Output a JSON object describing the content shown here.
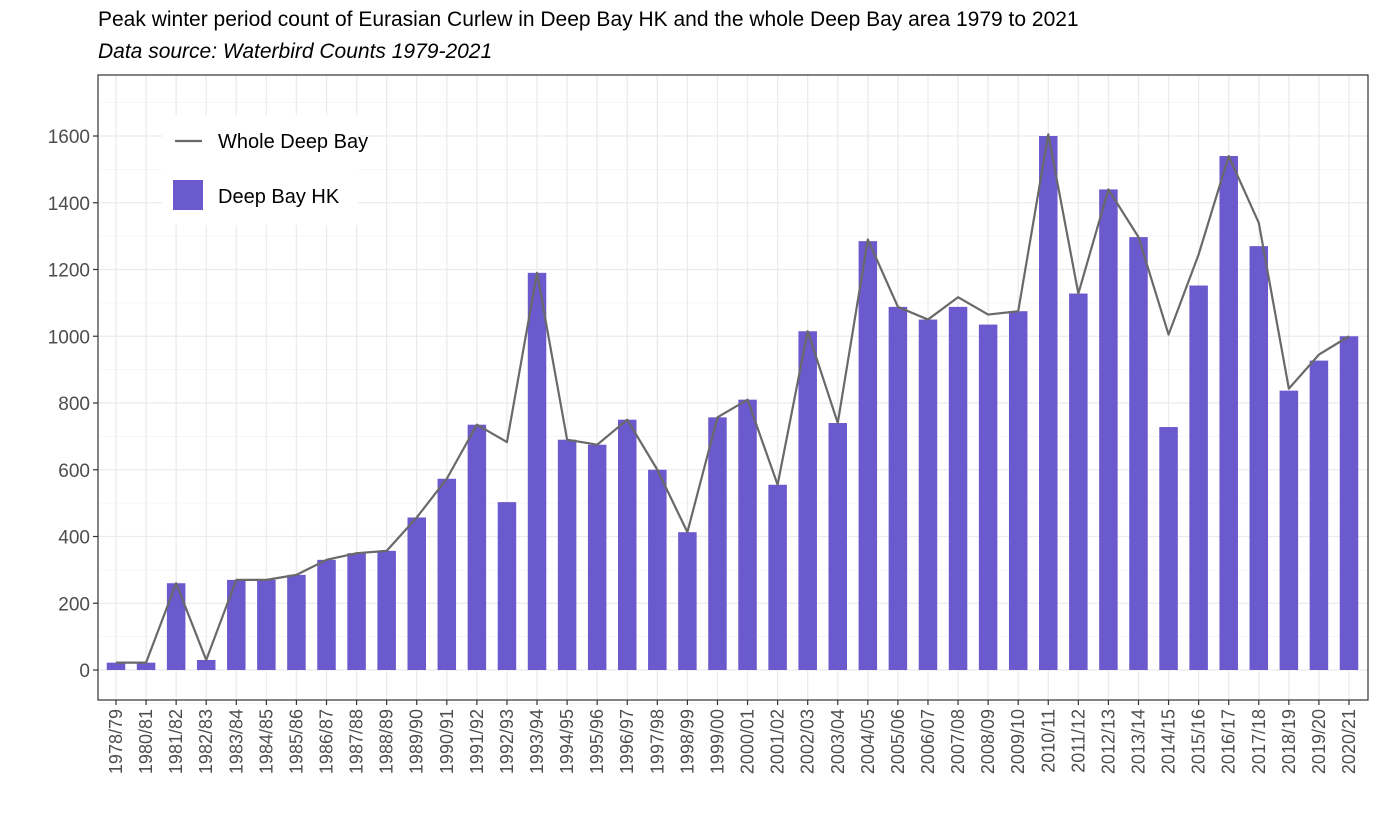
{
  "chart_data": {
    "type": "bar",
    "title": "Peak winter period count of Eurasian Curlew in Deep Bay HK and the whole Deep Bay area 1979 to 2021",
    "subtitle": "Data source: Waterbird Counts 1979-2021",
    "xlabel": "",
    "ylabel": "",
    "ylim": [
      -80,
      1770
    ],
    "yticks": [
      0,
      200,
      400,
      600,
      800,
      1000,
      1200,
      1400,
      1600
    ],
    "grid": true,
    "legend_position": "top-left",
    "categories": [
      "1978/79",
      "1980/81",
      "1981/82",
      "1982/83",
      "1983/84",
      "1984/85",
      "1985/86",
      "1986/87",
      "1987/88",
      "1988/89",
      "1989/90",
      "1990/91",
      "1991/92",
      "1992/93",
      "1993/94",
      "1994/95",
      "1995/96",
      "1996/97",
      "1997/98",
      "1998/99",
      "1999/00",
      "2000/01",
      "2001/02",
      "2002/03",
      "2003/04",
      "2004/05",
      "2005/06",
      "2006/07",
      "2007/08",
      "2008/09",
      "2009/10",
      "2010/11",
      "2011/12",
      "2012/13",
      "2013/14",
      "2014/15",
      "2015/16",
      "2016/17",
      "2017/18",
      "2018/19",
      "2019/20",
      "2020/21"
    ],
    "series": [
      {
        "name": "Deep Bay HK",
        "type": "bar",
        "color": "#6a5acd",
        "values": [
          22,
          22,
          260,
          30,
          270,
          270,
          285,
          330,
          350,
          357,
          457,
          573,
          735,
          503,
          1190,
          690,
          675,
          750,
          600,
          413,
          757,
          810,
          555,
          1015,
          740,
          1285,
          1088,
          1050,
          1088,
          1035,
          1075,
          1600,
          1128,
          1440,
          1297,
          728,
          1152,
          1540,
          1270,
          837,
          927,
          1000
        ]
      },
      {
        "name": "Whole Deep Bay",
        "type": "line",
        "color": "#696969",
        "values": [
          22,
          22,
          260,
          30,
          270,
          270,
          285,
          330,
          350,
          357,
          457,
          573,
          735,
          683,
          1190,
          690,
          675,
          750,
          600,
          413,
          757,
          810,
          555,
          1015,
          740,
          1290,
          1088,
          1050,
          1117,
          1065,
          1075,
          1605,
          1128,
          1440,
          1297,
          1005,
          1245,
          1540,
          1340,
          843,
          945,
          1000
        ]
      }
    ]
  }
}
